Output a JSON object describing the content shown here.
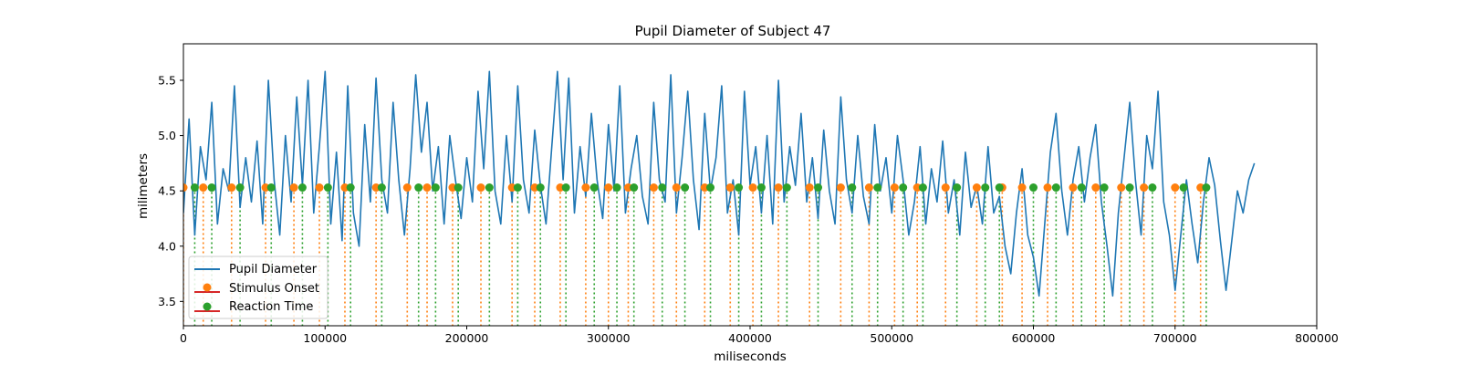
{
  "chart_data": {
    "type": "line",
    "title": "Pupil Diameter of Subject 47",
    "xlabel": "miliseconds",
    "ylabel": "milimeters",
    "xlim": [
      0,
      800000
    ],
    "ylim": [
      3.28,
      5.83
    ],
    "x_ticks": [
      0,
      100000,
      200000,
      300000,
      400000,
      500000,
      600000,
      700000,
      800000
    ],
    "y_ticks": [
      3.5,
      4.0,
      4.5,
      5.0,
      5.5
    ],
    "grid": false,
    "legend_position": "lower-left",
    "colors": {
      "pupil": "#1f77b4",
      "stimulus": "#ff7f0e",
      "reaction": "#2ca02c",
      "legend_line": "#d62728"
    },
    "series": [
      {
        "name": "Pupil Diameter",
        "kind": "line",
        "x": [
          0,
          4000,
          8000,
          12000,
          16000,
          20000,
          24000,
          28000,
          32000,
          36000,
          40000,
          44000,
          48000,
          52000,
          56000,
          60000,
          64000,
          68000,
          72000,
          76000,
          80000,
          84000,
          88000,
          92000,
          96000,
          100000,
          104000,
          108000,
          112000,
          116000,
          120000,
          124000,
          128000,
          132000,
          136000,
          140000,
          144000,
          148000,
          152000,
          156000,
          160000,
          164000,
          168000,
          172000,
          176000,
          180000,
          184000,
          188000,
          192000,
          196000,
          200000,
          204000,
          208000,
          212000,
          216000,
          220000,
          224000,
          228000,
          232000,
          236000,
          240000,
          244000,
          248000,
          252000,
          256000,
          260000,
          264000,
          268000,
          272000,
          276000,
          280000,
          284000,
          288000,
          292000,
          296000,
          300000,
          304000,
          308000,
          312000,
          316000,
          320000,
          324000,
          328000,
          332000,
          336000,
          340000,
          344000,
          348000,
          352000,
          356000,
          360000,
          364000,
          368000,
          372000,
          376000,
          380000,
          384000,
          388000,
          392000,
          396000,
          400000,
          404000,
          408000,
          412000,
          416000,
          420000,
          424000,
          428000,
          432000,
          436000,
          440000,
          444000,
          448000,
          452000,
          456000,
          460000,
          464000,
          468000,
          472000,
          476000,
          480000,
          484000,
          488000,
          492000,
          496000,
          500000,
          504000,
          508000,
          512000,
          516000,
          520000,
          524000,
          528000,
          532000,
          536000,
          540000,
          544000,
          548000,
          552000,
          556000,
          560000,
          564000,
          568000,
          572000,
          576000,
          580000,
          584000,
          588000,
          592000,
          596000,
          600000,
          604000,
          608000,
          612000,
          616000,
          620000,
          624000,
          628000,
          632000,
          636000,
          640000,
          644000,
          648000,
          652000,
          656000,
          660000,
          664000,
          668000,
          672000,
          676000,
          680000,
          684000,
          688000,
          692000,
          696000,
          700000,
          704000,
          708000,
          712000,
          716000,
          720000,
          724000,
          728000,
          732000,
          736000,
          740000,
          744000,
          748000,
          752000,
          756000
        ],
        "values": [
          4.3,
          5.15,
          4.1,
          4.9,
          4.6,
          5.3,
          4.2,
          4.7,
          4.5,
          5.45,
          4.35,
          4.8,
          4.4,
          4.95,
          4.2,
          5.5,
          4.6,
          4.1,
          5.0,
          4.4,
          5.35,
          4.55,
          5.5,
          4.3,
          4.9,
          5.58,
          4.2,
          4.85,
          4.05,
          5.45,
          4.3,
          4.0,
          5.1,
          4.4,
          5.52,
          4.6,
          4.3,
          5.3,
          4.6,
          4.1,
          4.7,
          5.55,
          4.85,
          5.3,
          4.5,
          4.9,
          4.2,
          5.0,
          4.6,
          4.25,
          4.8,
          4.4,
          5.4,
          4.7,
          5.58,
          4.5,
          4.2,
          5.0,
          4.4,
          5.45,
          4.6,
          4.3,
          5.05,
          4.55,
          4.2,
          4.9,
          5.58,
          4.6,
          5.52,
          4.3,
          4.9,
          4.45,
          5.2,
          4.6,
          4.25,
          5.1,
          4.5,
          5.45,
          4.3,
          4.7,
          5.0,
          4.45,
          4.2,
          5.3,
          4.6,
          4.4,
          5.55,
          4.3,
          4.8,
          5.4,
          4.6,
          4.15,
          5.2,
          4.5,
          4.8,
          5.45,
          4.3,
          4.6,
          4.1,
          5.4,
          4.55,
          4.9,
          4.3,
          5.0,
          4.2,
          5.5,
          4.4,
          4.9,
          4.55,
          5.2,
          4.4,
          4.8,
          4.25,
          5.05,
          4.5,
          4.2,
          5.35,
          4.6,
          4.3,
          5.0,
          4.45,
          4.2,
          5.1,
          4.5,
          4.8,
          4.3,
          5.0,
          4.6,
          4.1,
          4.4,
          4.9,
          4.2,
          4.7,
          4.4,
          4.95,
          4.3,
          4.6,
          4.1,
          4.85,
          4.35,
          4.55,
          4.2,
          4.9,
          4.3,
          4.45,
          4.0,
          3.75,
          4.3,
          4.7,
          4.1,
          3.9,
          3.55,
          4.2,
          4.85,
          5.2,
          4.5,
          4.1,
          4.6,
          4.9,
          4.4,
          4.8,
          5.1,
          4.4,
          4.0,
          3.55,
          4.3,
          4.8,
          5.3,
          4.6,
          4.1,
          5.0,
          4.7,
          5.4,
          4.4,
          4.1,
          3.6,
          4.1,
          4.6,
          4.2,
          3.85,
          4.4,
          4.8,
          4.55,
          4.05,
          3.6,
          4.05,
          4.5,
          4.3,
          4.6,
          4.75
        ]
      },
      {
        "name": "Stimulus Onset",
        "kind": "events",
        "y": 4.53,
        "x": [
          0,
          14000,
          34000,
          58000,
          78000,
          96000,
          114000,
          136000,
          158000,
          172000,
          190000,
          210000,
          232000,
          248000,
          266000,
          284000,
          300000,
          314000,
          332000,
          348000,
          368000,
          386000,
          402000,
          420000,
          442000,
          464000,
          484000,
          502000,
          518000,
          538000,
          560000,
          578000,
          592000,
          610000,
          628000,
          644000,
          662000,
          678000,
          700000,
          718000
        ]
      },
      {
        "name": "Reaction Time",
        "kind": "events",
        "y": 4.53,
        "x": [
          8000,
          20000,
          40000,
          62000,
          84000,
          102000,
          118000,
          140000,
          166000,
          178000,
          194000,
          216000,
          236000,
          252000,
          270000,
          290000,
          306000,
          318000,
          338000,
          354000,
          372000,
          392000,
          408000,
          426000,
          448000,
          472000,
          490000,
          508000,
          522000,
          546000,
          566000,
          576000,
          600000,
          616000,
          634000,
          650000,
          668000,
          684000,
          706000,
          722000
        ]
      }
    ]
  }
}
